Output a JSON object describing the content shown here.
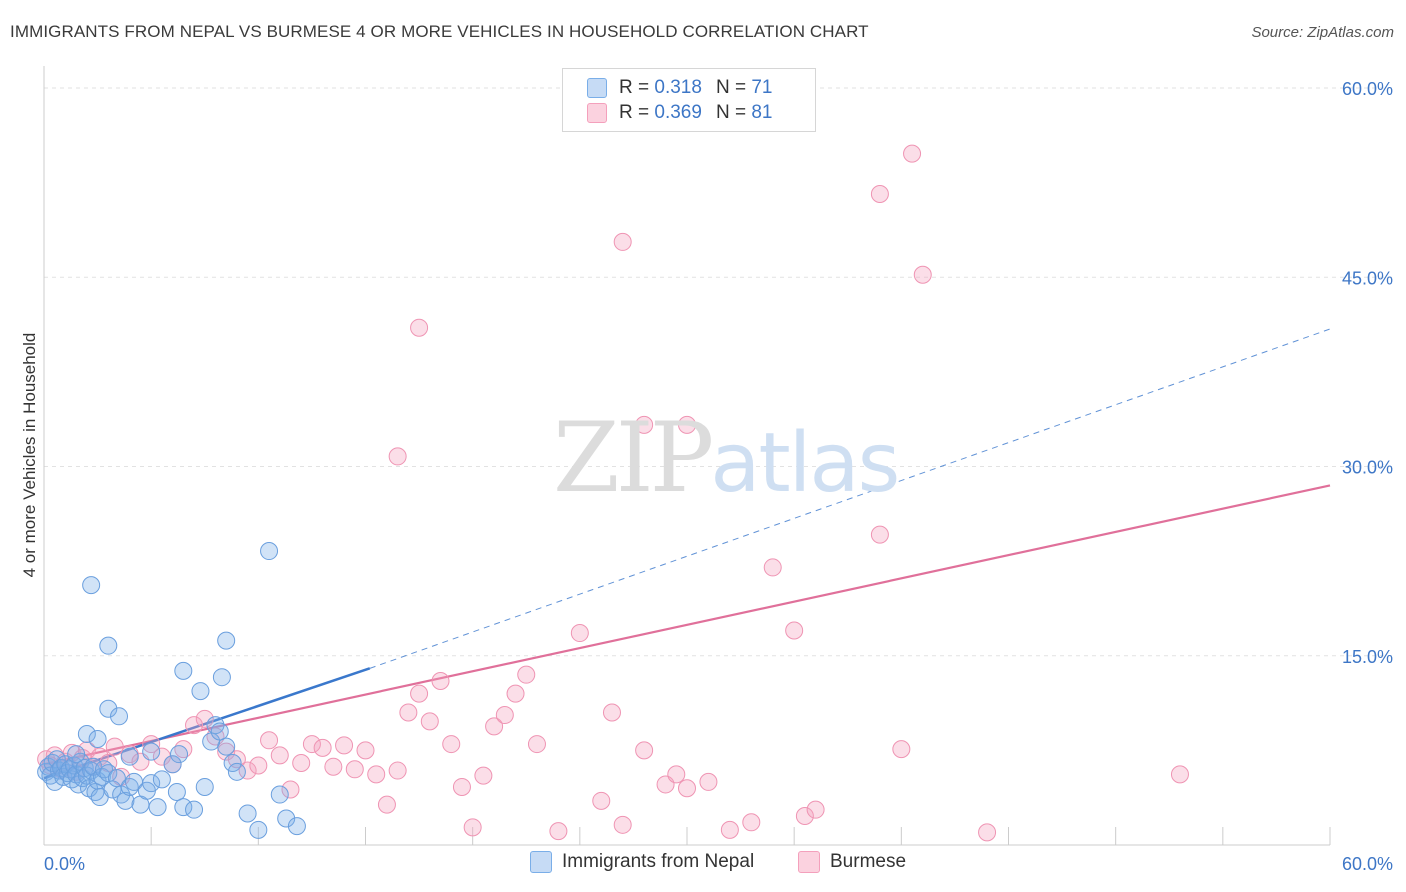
{
  "title": "IMMIGRANTS FROM NEPAL VS BURMESE 4 OR MORE VEHICLES IN HOUSEHOLD CORRELATION CHART",
  "source": "Source: ZipAtlas.com",
  "watermark": {
    "zip": "ZIP",
    "atlas": "atlas"
  },
  "legend": {
    "rows": [
      {
        "r_label": "R =",
        "r_value": "0.318",
        "n_label": "N =",
        "n_value": "71"
      },
      {
        "r_label": "R =",
        "r_value": "0.369",
        "n_label": "N =",
        "n_value": "81"
      }
    ]
  },
  "bottom_legend": {
    "series1": "Immigrants from Nepal",
    "series2": "Burmese"
  },
  "chart_data": {
    "type": "scatter",
    "title": "IMMIGRANTS FROM NEPAL VS BURMESE 4 OR MORE VEHICLES IN HOUSEHOLD CORRELATION CHART",
    "xlabel": "",
    "ylabel": "4 or more Vehicles in Household",
    "xlim": [
      0,
      60
    ],
    "ylim": [
      0,
      60
    ],
    "x_tick_labels": [
      "0.0%",
      "60.0%"
    ],
    "y_ticks": [
      15,
      30,
      45,
      60
    ],
    "y_tick_labels": [
      "15.0%",
      "30.0%",
      "45.0%",
      "60.0%"
    ],
    "colors": {
      "nepal": "#7aaee8",
      "burmese": "#f4a0bc",
      "nepal_line": "#3a78cc",
      "burmese_line": "#e0709a",
      "axis_label": "#3d76c6"
    },
    "series": [
      {
        "name": "Immigrants from Nepal",
        "R": 0.318,
        "N": 71,
        "trend": {
          "x0": 0,
          "y0": 5.3,
          "x1": 15.2,
          "y1": 14.0,
          "dashed_to_x": 60,
          "dashed_to_y": 40.9
        },
        "points": [
          [
            0.1,
            5.8
          ],
          [
            0.2,
            6.2
          ],
          [
            0.3,
            5.5
          ],
          [
            0.4,
            6.5
          ],
          [
            0.5,
            5.0
          ],
          [
            0.6,
            6.8
          ],
          [
            0.7,
            5.9
          ],
          [
            0.8,
            6.1
          ],
          [
            0.9,
            5.4
          ],
          [
            1.0,
            6.4
          ],
          [
            1.1,
            5.7
          ],
          [
            1.2,
            6.0
          ],
          [
            1.3,
            5.2
          ],
          [
            1.4,
            6.3
          ],
          [
            1.5,
            5.6
          ],
          [
            1.6,
            4.8
          ],
          [
            1.7,
            6.6
          ],
          [
            1.8,
            5.3
          ],
          [
            1.9,
            6.1
          ],
          [
            2.0,
            5.5
          ],
          [
            2.1,
            4.5
          ],
          [
            2.2,
            5.9
          ],
          [
            2.3,
            6.2
          ],
          [
            2.4,
            4.2
          ],
          [
            2.5,
            5.1
          ],
          [
            2.6,
            3.8
          ],
          [
            2.7,
            5.4
          ],
          [
            2.8,
            6.0
          ],
          [
            3.0,
            5.7
          ],
          [
            3.2,
            4.4
          ],
          [
            3.4,
            5.3
          ],
          [
            3.6,
            4.0
          ],
          [
            3.8,
            3.5
          ],
          [
            4.0,
            4.6
          ],
          [
            4.2,
            5.0
          ],
          [
            4.5,
            3.2
          ],
          [
            4.8,
            4.3
          ],
          [
            5.0,
            4.9
          ],
          [
            5.3,
            3.0
          ],
          [
            5.5,
            5.2
          ],
          [
            6.0,
            6.4
          ],
          [
            6.2,
            4.2
          ],
          [
            6.5,
            3.0
          ],
          [
            7.0,
            2.8
          ],
          [
            7.5,
            4.6
          ],
          [
            8.0,
            9.5
          ],
          [
            8.5,
            7.8
          ],
          [
            8.8,
            6.5
          ],
          [
            9.0,
            5.8
          ],
          [
            9.5,
            2.5
          ],
          [
            10.0,
            1.2
          ],
          [
            1.5,
            7.2
          ],
          [
            2.0,
            8.8
          ],
          [
            2.5,
            8.4
          ],
          [
            3.0,
            10.8
          ],
          [
            3.5,
            10.2
          ],
          [
            4.0,
            7.0
          ],
          [
            5.0,
            7.4
          ],
          [
            2.2,
            20.6
          ],
          [
            3.0,
            15.8
          ],
          [
            6.3,
            7.2
          ],
          [
            7.8,
            8.2
          ],
          [
            8.2,
            9.0
          ],
          [
            6.5,
            13.8
          ],
          [
            7.3,
            12.2
          ],
          [
            8.3,
            13.3
          ],
          [
            8.5,
            16.2
          ],
          [
            10.5,
            23.3
          ],
          [
            11.0,
            4.0
          ],
          [
            11.3,
            2.1
          ],
          [
            11.8,
            1.5
          ]
        ]
      },
      {
        "name": "Burmese",
        "R": 0.369,
        "N": 81,
        "trend": {
          "x0": 0,
          "y0": 6.4,
          "x1": 60,
          "y1": 28.5
        },
        "points": [
          [
            0.1,
            6.8
          ],
          [
            0.3,
            6.3
          ],
          [
            0.5,
            7.1
          ],
          [
            0.8,
            6.0
          ],
          [
            1.0,
            6.6
          ],
          [
            1.3,
            7.3
          ],
          [
            1.5,
            5.8
          ],
          [
            1.8,
            6.9
          ],
          [
            2.0,
            7.5
          ],
          [
            2.3,
            6.2
          ],
          [
            2.6,
            7.0
          ],
          [
            3.0,
            6.5
          ],
          [
            3.3,
            7.8
          ],
          [
            3.6,
            5.4
          ],
          [
            4.0,
            7.2
          ],
          [
            4.5,
            6.6
          ],
          [
            5.0,
            8.0
          ],
          [
            5.5,
            7.0
          ],
          [
            6.0,
            6.4
          ],
          [
            6.5,
            7.6
          ],
          [
            7.0,
            9.5
          ],
          [
            7.5,
            10.0
          ],
          [
            8.0,
            8.6
          ],
          [
            8.5,
            7.4
          ],
          [
            9.0,
            6.8
          ],
          [
            9.5,
            5.9
          ],
          [
            10.0,
            6.3
          ],
          [
            10.5,
            8.3
          ],
          [
            11.0,
            7.1
          ],
          [
            11.5,
            4.4
          ],
          [
            12.0,
            6.5
          ],
          [
            12.5,
            8.0
          ],
          [
            13.0,
            7.7
          ],
          [
            13.5,
            6.2
          ],
          [
            14.0,
            7.9
          ],
          [
            14.5,
            6.0
          ],
          [
            15.0,
            7.5
          ],
          [
            15.5,
            5.6
          ],
          [
            16.0,
            3.2
          ],
          [
            16.5,
            5.9
          ],
          [
            17.0,
            10.5
          ],
          [
            17.5,
            12.0
          ],
          [
            18.0,
            9.8
          ],
          [
            18.5,
            13.0
          ],
          [
            19.0,
            8.0
          ],
          [
            19.5,
            4.6
          ],
          [
            20.0,
            1.4
          ],
          [
            20.5,
            5.5
          ],
          [
            21.0,
            9.4
          ],
          [
            21.5,
            10.3
          ],
          [
            22.0,
            12.0
          ],
          [
            22.5,
            13.5
          ],
          [
            23.0,
            8.0
          ],
          [
            24.0,
            1.1
          ],
          [
            25.0,
            16.8
          ],
          [
            26.0,
            3.5
          ],
          [
            26.5,
            10.5
          ],
          [
            27.0,
            1.6
          ],
          [
            28.0,
            7.5
          ],
          [
            29.0,
            4.8
          ],
          [
            29.5,
            5.6
          ],
          [
            30.0,
            4.5
          ],
          [
            31.0,
            5.0
          ],
          [
            32.0,
            1.2
          ],
          [
            33.0,
            1.8
          ],
          [
            34.0,
            22.0
          ],
          [
            35.0,
            17.0
          ],
          [
            35.5,
            2.3
          ],
          [
            36.0,
            2.8
          ],
          [
            39.0,
            24.6
          ],
          [
            40.0,
            7.6
          ],
          [
            41.0,
            45.2
          ],
          [
            16.5,
            30.8
          ],
          [
            17.5,
            41.0
          ],
          [
            28.0,
            33.3
          ],
          [
            30.0,
            33.3
          ],
          [
            39.0,
            51.6
          ],
          [
            40.5,
            54.8
          ],
          [
            44.0,
            1.0
          ],
          [
            27.0,
            47.8
          ],
          [
            53.0,
            5.6
          ]
        ]
      }
    ]
  }
}
